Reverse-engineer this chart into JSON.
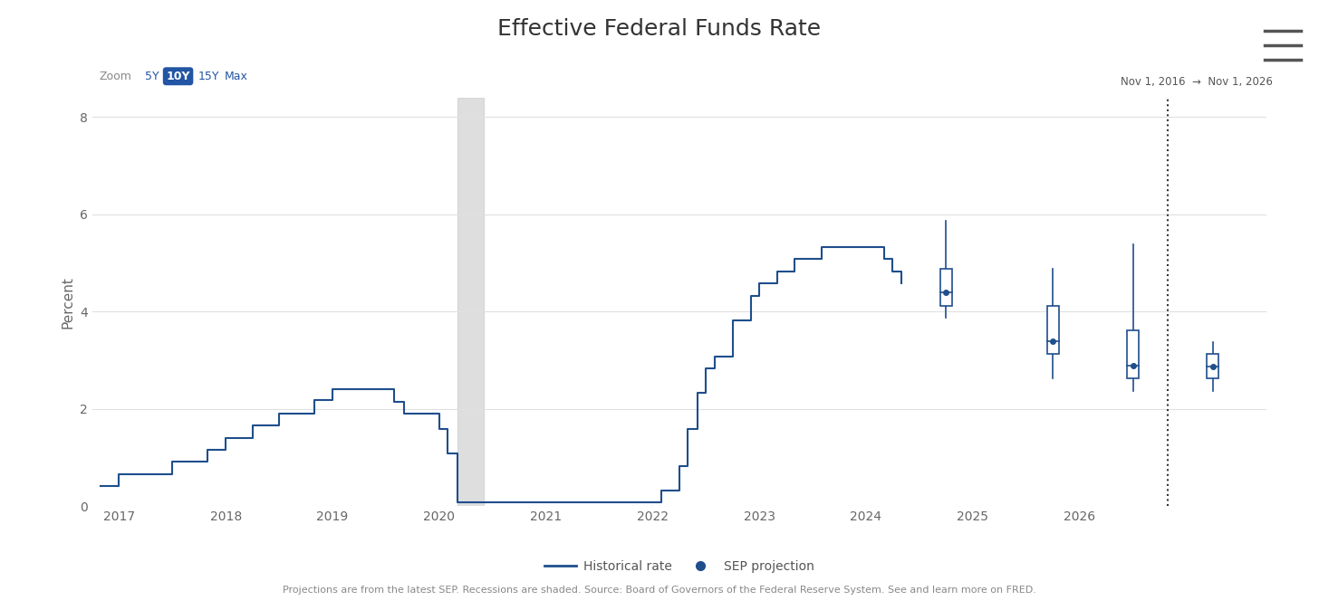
{
  "title": "Effective Federal Funds Rate",
  "ylabel": "Percent",
  "ylim": [
    0,
    8.4
  ],
  "yticks": [
    0,
    2,
    4,
    6,
    8
  ],
  "bg_color": "#ffffff",
  "plot_bg_color": "#ffffff",
  "grid_color": "#e0e0e0",
  "line_color": "#1f4e8c",
  "recession_color": "#d0d0d0",
  "recession_alpha": 0.7,
  "recession_start": 2020.17,
  "recession_end": 2020.42,
  "date_range_text": "Nov 1, 2016  →  Nov 1, 2026",
  "zoom_active": "10Y",
  "footer_text": "Projections are from the latest SEP. Recessions are shaded. Source: Board of Governors of the Federal Reserve System. See and learn more on FRED.",
  "vline_x": 2026.83,
  "vline_color": "#333333",
  "proj_color": "#1f4e8c",
  "historical_x": [
    2016.83,
    2016.92,
    2017.0,
    2017.25,
    2017.5,
    2017.83,
    2017.92,
    2018.0,
    2018.25,
    2018.5,
    2018.83,
    2018.92,
    2019.0,
    2019.5,
    2019.58,
    2019.67,
    2019.83,
    2020.0,
    2020.08,
    2020.17,
    2020.25,
    2020.33,
    2020.42,
    2020.5,
    2020.58,
    2020.67,
    2020.75,
    2020.83,
    2020.92,
    2021.0,
    2021.08,
    2021.17,
    2021.25,
    2021.33,
    2021.42,
    2021.5,
    2021.58,
    2021.67,
    2021.75,
    2021.83,
    2021.92,
    2022.0,
    2022.08,
    2022.17,
    2022.25,
    2022.33,
    2022.42,
    2022.5,
    2022.58,
    2022.67,
    2022.75,
    2022.83,
    2022.92,
    2023.0,
    2023.08,
    2023.17,
    2023.25,
    2023.33,
    2023.42,
    2023.5,
    2023.58,
    2023.67,
    2023.75,
    2023.83,
    2023.92,
    2024.0,
    2024.08,
    2024.17,
    2024.25,
    2024.33
  ],
  "historical_y": [
    0.41,
    0.41,
    0.66,
    0.66,
    0.91,
    1.16,
    1.16,
    1.41,
    1.66,
    1.91,
    2.19,
    2.19,
    2.4,
    2.4,
    2.15,
    1.9,
    1.9,
    1.58,
    1.09,
    0.08,
    0.08,
    0.08,
    0.08,
    0.08,
    0.08,
    0.08,
    0.08,
    0.08,
    0.08,
    0.08,
    0.08,
    0.08,
    0.08,
    0.08,
    0.08,
    0.08,
    0.08,
    0.08,
    0.08,
    0.08,
    0.08,
    0.08,
    0.33,
    0.33,
    0.83,
    1.58,
    2.33,
    2.83,
    3.08,
    3.08,
    3.83,
    3.83,
    4.33,
    4.58,
    4.58,
    4.83,
    4.83,
    5.08,
    5.08,
    5.08,
    5.33,
    5.33,
    5.33,
    5.33,
    5.33,
    5.33,
    5.33,
    5.08,
    4.83,
    4.58
  ],
  "projections": [
    {
      "x": 2024.75,
      "median": 4.4,
      "q1": 4.125,
      "q3": 4.875,
      "whisker_low": 3.875,
      "whisker_high": 5.875
    },
    {
      "x": 2025.75,
      "median": 3.4,
      "q1": 3.125,
      "q3": 4.125,
      "whisker_low": 2.625,
      "whisker_high": 4.875
    },
    {
      "x": 2026.5,
      "median": 2.9,
      "q1": 2.625,
      "q3": 3.625,
      "whisker_low": 2.375,
      "whisker_high": 5.375
    },
    {
      "x": 2027.25,
      "median": 2.875,
      "q1": 2.625,
      "q3": 3.125,
      "whisker_low": 2.375,
      "whisker_high": 3.375
    }
  ],
  "legend_line_label": "Historical rate",
  "legend_dot_label": "SEP projection",
  "xmin": 2016.75,
  "xmax": 2027.75,
  "xticks": [
    2017,
    2018,
    2019,
    2020,
    2021,
    2022,
    2023,
    2024,
    2025,
    2026
  ],
  "xlabels": [
    "2017",
    "2018",
    "2019",
    "2020",
    "2021",
    "2022",
    "2023",
    "2024",
    "2025",
    "2026"
  ]
}
